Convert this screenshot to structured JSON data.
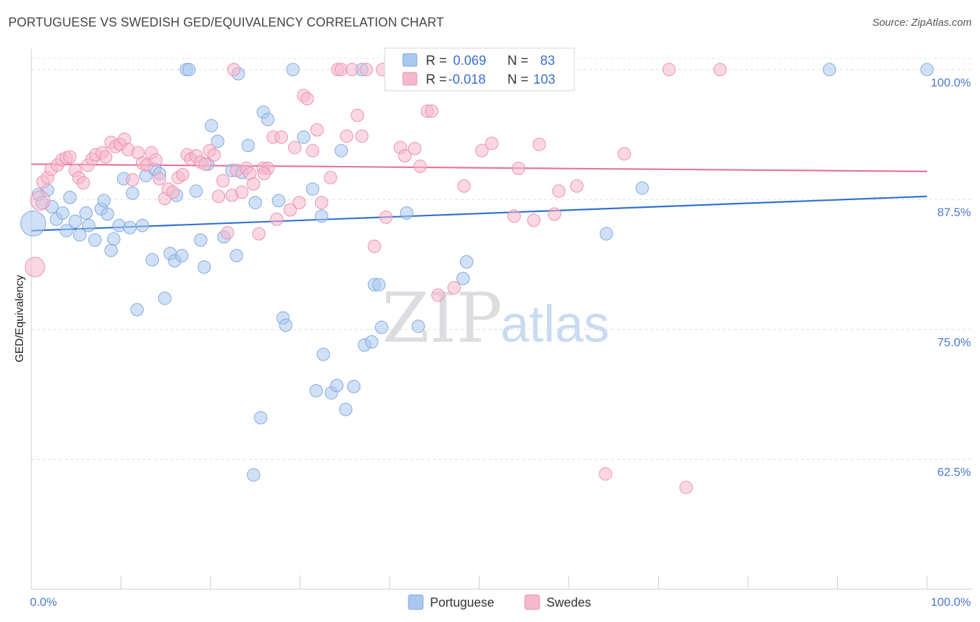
{
  "header": {
    "title": "PORTUGUESE VS SWEDISH GED/EQUIVALENCY CORRELATION CHART",
    "source": "Source: ZipAtlas.com"
  },
  "watermark": {
    "zip": "ZIP",
    "atlas": "atlas"
  },
  "chart_data": {
    "type": "scatter",
    "ylabel": "GED/Equivalency",
    "xlim": [
      0,
      100
    ],
    "ylim": [
      50,
      102
    ],
    "y_ticks": [
      {
        "value": 100,
        "label": "100.0%"
      },
      {
        "value": 87.5,
        "label": "87.5%"
      },
      {
        "value": 75,
        "label": "75.0%"
      },
      {
        "value": 62.5,
        "label": "62.5%"
      }
    ],
    "x_tick_labels": {
      "left": "0.0%",
      "right": "100.0%"
    },
    "x_minor_ticks": [
      10,
      20,
      30,
      40,
      50,
      60,
      70,
      80,
      90,
      100
    ],
    "grid": true,
    "legend_position": "top-center",
    "stats_legend": [
      {
        "r_label": "R =",
        "r_value": "0.069",
        "n_label": "N =",
        "n_value": "83",
        "color": "#a9c8f0"
      },
      {
        "r_label": "R =",
        "r_value": "-0.018",
        "n_label": "N =",
        "n_value": "103",
        "color": "#f5b8cc"
      }
    ],
    "series": [
      {
        "name": "Portuguese",
        "color": "#a9c8f0",
        "stroke": "#7fa8e0",
        "trend_color": "#2f6fd0",
        "trend": [
          [
            0,
            84.5
          ],
          [
            100,
            87.8
          ]
        ],
        "points": [
          [
            0.2,
            85.2,
            18
          ],
          [
            0.8,
            88.0,
            9
          ],
          [
            1.2,
            87.2,
            9
          ],
          [
            1.8,
            88.4,
            9
          ],
          [
            2.3,
            86.8,
            9
          ],
          [
            2.8,
            85.6,
            9
          ],
          [
            3.5,
            86.2,
            9
          ],
          [
            3.9,
            84.5,
            9
          ],
          [
            4.3,
            87.7,
            9
          ],
          [
            4.9,
            85.4,
            9
          ],
          [
            5.4,
            84.1,
            9
          ],
          [
            6.1,
            86.2,
            9
          ],
          [
            6.4,
            85.0,
            9
          ],
          [
            7.1,
            83.6,
            9
          ],
          [
            7.8,
            86.6,
            9
          ],
          [
            8.1,
            87.4,
            9
          ],
          [
            8.5,
            86.1,
            9
          ],
          [
            8.9,
            82.6,
            9
          ],
          [
            9.2,
            83.7,
            9
          ],
          [
            9.8,
            85.0,
            9
          ],
          [
            10.3,
            89.5,
            9
          ],
          [
            11.0,
            84.8,
            9
          ],
          [
            11.3,
            88.1,
            9
          ],
          [
            11.8,
            76.9,
            9
          ],
          [
            12.4,
            85.0,
            9
          ],
          [
            12.8,
            89.8,
            9
          ],
          [
            13.5,
            81.7,
            9
          ],
          [
            13.8,
            90.4,
            9
          ],
          [
            14.3,
            90.0,
            9
          ],
          [
            14.9,
            78.0,
            9
          ],
          [
            15.5,
            82.3,
            9
          ],
          [
            16.0,
            81.6,
            9
          ],
          [
            16.2,
            87.9,
            9
          ],
          [
            16.8,
            82.1,
            9
          ],
          [
            17.3,
            100.0,
            9
          ],
          [
            17.6,
            100.0,
            9
          ],
          [
            18.4,
            88.3,
            9
          ],
          [
            18.9,
            83.6,
            9
          ],
          [
            19.3,
            81.0,
            9
          ],
          [
            19.7,
            90.9,
            9
          ],
          [
            20.1,
            94.6,
            9
          ],
          [
            20.8,
            93.1,
            9
          ],
          [
            21.5,
            83.9,
            9
          ],
          [
            22.4,
            90.3,
            9
          ],
          [
            22.9,
            82.1,
            9
          ],
          [
            23.1,
            99.6,
            9
          ],
          [
            23.5,
            90.1,
            9
          ],
          [
            24.2,
            92.7,
            9
          ],
          [
            25.0,
            87.2,
            9
          ],
          [
            25.9,
            95.9,
            9
          ],
          [
            26.4,
            95.2,
            9
          ],
          [
            27.6,
            87.4,
            9
          ],
          [
            28.1,
            76.1,
            9
          ],
          [
            28.4,
            75.4,
            9
          ],
          [
            29.2,
            100.0,
            9
          ],
          [
            30.4,
            93.5,
            9
          ],
          [
            31.4,
            88.5,
            9
          ],
          [
            31.8,
            69.1,
            9
          ],
          [
            32.4,
            85.9,
            9
          ],
          [
            32.6,
            72.6,
            9
          ],
          [
            33.5,
            68.9,
            9
          ],
          [
            34.1,
            69.6,
            9
          ],
          [
            34.6,
            92.2,
            9
          ],
          [
            35.1,
            67.3,
            9
          ],
          [
            36.0,
            69.5,
            9
          ],
          [
            36.9,
            100.0,
            9
          ],
          [
            37.2,
            73.5,
            9
          ],
          [
            38.0,
            73.8,
            9
          ],
          [
            38.3,
            79.3,
            9
          ],
          [
            38.8,
            79.3,
            9
          ],
          [
            39.1,
            75.2,
            9
          ],
          [
            41.8,
            100.0,
            9
          ],
          [
            41.9,
            86.2,
            9
          ],
          [
            43.2,
            75.3,
            9
          ],
          [
            45.9,
            100.0,
            9
          ],
          [
            48.2,
            79.9,
            9
          ],
          [
            48.6,
            81.5,
            9
          ],
          [
            64.2,
            84.2,
            9
          ],
          [
            68.2,
            88.6,
            9
          ],
          [
            89.1,
            100.0,
            9
          ],
          [
            100.0,
            100.0,
            9
          ],
          [
            25.6,
            66.5,
            9
          ],
          [
            24.8,
            61.0,
            9
          ]
        ]
      },
      {
        "name": "Swedes",
        "color": "#f5b8cc",
        "stroke": "#ec8fae",
        "trend_color": "#e8739c",
        "trend": [
          [
            0,
            90.9
          ],
          [
            100,
            90.2
          ]
        ],
        "points": [
          [
            0.4,
            81.0,
            14
          ],
          [
            1.0,
            87.4,
            14
          ],
          [
            1.3,
            89.2,
            9
          ],
          [
            1.8,
            89.6,
            9
          ],
          [
            2.2,
            90.4,
            9
          ],
          [
            2.9,
            90.8,
            9
          ],
          [
            3.4,
            91.3,
            9
          ],
          [
            3.9,
            91.5,
            9
          ],
          [
            4.3,
            91.6,
            9
          ],
          [
            4.9,
            90.3,
            9
          ],
          [
            5.3,
            89.6,
            9
          ],
          [
            5.8,
            89.1,
            9
          ],
          [
            6.3,
            90.8,
            9
          ],
          [
            6.8,
            91.4,
            9
          ],
          [
            7.2,
            91.8,
            9
          ],
          [
            7.9,
            92.0,
            9
          ],
          [
            8.3,
            91.6,
            9
          ],
          [
            8.9,
            93.0,
            9
          ],
          [
            9.4,
            92.6,
            9
          ],
          [
            9.9,
            92.8,
            9
          ],
          [
            10.4,
            93.3,
            9
          ],
          [
            10.8,
            92.3,
            9
          ],
          [
            11.3,
            89.4,
            9
          ],
          [
            11.9,
            92.0,
            9
          ],
          [
            12.4,
            91.0,
            9
          ],
          [
            12.9,
            90.8,
            9
          ],
          [
            13.4,
            92.0,
            9
          ],
          [
            13.9,
            91.3,
            9
          ],
          [
            14.3,
            89.5,
            9
          ],
          [
            14.9,
            87.6,
            9
          ],
          [
            15.3,
            88.5,
            9
          ],
          [
            15.8,
            88.2,
            9
          ],
          [
            16.4,
            89.6,
            9
          ],
          [
            16.9,
            89.9,
            9
          ],
          [
            17.4,
            91.8,
            9
          ],
          [
            17.8,
            91.4,
            9
          ],
          [
            18.4,
            91.7,
            9
          ],
          [
            18.9,
            91.1,
            9
          ],
          [
            19.4,
            90.9,
            9
          ],
          [
            19.9,
            92.2,
            9
          ],
          [
            20.4,
            91.8,
            9
          ],
          [
            20.9,
            87.8,
            9
          ],
          [
            21.4,
            89.3,
            9
          ],
          [
            21.9,
            84.3,
            9
          ],
          [
            22.4,
            87.9,
            9
          ],
          [
            22.9,
            90.3,
            9
          ],
          [
            23.5,
            88.2,
            9
          ],
          [
            24.0,
            90.5,
            9
          ],
          [
            24.4,
            90.0,
            9
          ],
          [
            24.8,
            89.0,
            9
          ],
          [
            25.4,
            84.2,
            9
          ],
          [
            25.9,
            90.5,
            9
          ],
          [
            26.4,
            90.5,
            9
          ],
          [
            27.0,
            93.5,
            9
          ],
          [
            27.4,
            85.6,
            9
          ],
          [
            27.9,
            93.5,
            9
          ],
          [
            28.9,
            86.5,
            9
          ],
          [
            29.4,
            92.5,
            9
          ],
          [
            29.9,
            87.2,
            9
          ],
          [
            30.4,
            97.5,
            9
          ],
          [
            30.8,
            97.2,
            9
          ],
          [
            31.4,
            92.2,
            9
          ],
          [
            31.9,
            94.2,
            9
          ],
          [
            32.4,
            87.2,
            9
          ],
          [
            33.4,
            89.6,
            9
          ],
          [
            34.2,
            100.0,
            9
          ],
          [
            34.6,
            100.0,
            9
          ],
          [
            35.2,
            93.6,
            9
          ],
          [
            35.8,
            100.0,
            9
          ],
          [
            36.4,
            95.6,
            9
          ],
          [
            36.9,
            93.6,
            9
          ],
          [
            37.4,
            100.0,
            9
          ],
          [
            38.3,
            83.0,
            9
          ],
          [
            39.2,
            100.0,
            9
          ],
          [
            39.6,
            85.8,
            9
          ],
          [
            41.2,
            92.5,
            9
          ],
          [
            41.7,
            91.7,
            9
          ],
          [
            42.4,
            100.0,
            9
          ],
          [
            42.8,
            92.4,
            9
          ],
          [
            43.4,
            90.7,
            9
          ],
          [
            44.2,
            96.0,
            9
          ],
          [
            44.7,
            96.0,
            9
          ],
          [
            45.4,
            78.3,
            9
          ],
          [
            46.2,
            100.0,
            9
          ],
          [
            47.2,
            79.0,
            9
          ],
          [
            48.3,
            88.8,
            9
          ],
          [
            50.3,
            92.2,
            9
          ],
          [
            51.4,
            92.9,
            9
          ],
          [
            52.4,
            100.0,
            9
          ],
          [
            53.9,
            85.9,
            9
          ],
          [
            54.4,
            90.5,
            9
          ],
          [
            56.1,
            85.5,
            9
          ],
          [
            56.7,
            92.8,
            9
          ],
          [
            58.4,
            86.1,
            9
          ],
          [
            58.9,
            88.3,
            9
          ],
          [
            60.9,
            88.8,
            9
          ],
          [
            64.1,
            61.1,
            9
          ],
          [
            66.2,
            91.9,
            9
          ],
          [
            71.2,
            100.0,
            9
          ],
          [
            73.1,
            59.8,
            9
          ],
          [
            76.9,
            100.0,
            9
          ],
          [
            22.6,
            100.0,
            9
          ],
          [
            26.0,
            90.0,
            9
          ]
        ]
      }
    ]
  }
}
